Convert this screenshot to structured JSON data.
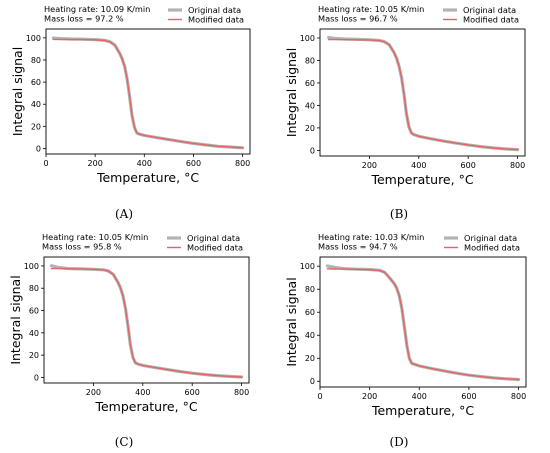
{
  "colors": {
    "original": "#b3b3b3",
    "modified": "#e06666",
    "axis": "#000000"
  },
  "chart_data": [
    {
      "type": "line",
      "panel_label": "(A)",
      "annotation": [
        "Heating rate: 10.09 K/min",
        "Mass loss = 97.2 %"
      ],
      "xlabel": "Temperature, °C",
      "ylabel": "Integral signal",
      "xlim": [
        0,
        830
      ],
      "ylim": [
        -5,
        108
      ],
      "xticks": [
        0,
        200,
        400,
        600,
        800
      ],
      "yticks": [
        0,
        20,
        40,
        60,
        80,
        100
      ],
      "legend": "top-right",
      "series": [
        {
          "name": "Original data",
          "x": [
            30,
            60,
            100,
            150,
            200,
            240,
            260,
            280,
            300,
            310,
            320,
            330,
            340,
            350,
            360,
            370,
            380,
            400,
            450,
            500,
            550,
            600,
            650,
            700,
            750,
            800
          ],
          "y": [
            99.8,
            99.3,
            99.0,
            98.8,
            98.4,
            97.7,
            96.5,
            93.5,
            86.0,
            81.0,
            74.0,
            63.0,
            47.0,
            30.0,
            19.0,
            14.0,
            13.0,
            11.8,
            9.8,
            8.0,
            6.2,
            4.6,
            3.2,
            2.0,
            1.3,
            0.6
          ]
        },
        {
          "name": "Modified data",
          "x": [
            30,
            60,
            100,
            150,
            200,
            240,
            260,
            280,
            300,
            310,
            320,
            330,
            340,
            350,
            360,
            370,
            380,
            400,
            450,
            500,
            550,
            600,
            650,
            700,
            750,
            800
          ],
          "y": [
            98.6,
            98.6,
            98.5,
            98.4,
            98.2,
            97.6,
            96.4,
            93.4,
            86.0,
            81.0,
            74.0,
            63.0,
            47.0,
            30.0,
            19.0,
            14.0,
            13.0,
            11.8,
            9.8,
            8.0,
            6.2,
            4.6,
            3.2,
            2.0,
            1.3,
            0.6
          ]
        }
      ]
    },
    {
      "type": "line",
      "panel_label": "(B)",
      "annotation": [
        "Heating rate: 10.05 K/min",
        "Mass loss = 96.7 %"
      ],
      "xlabel": "Temperature, °C",
      "ylabel": "Integral signal",
      "xlim": [
        0,
        830
      ],
      "ylim": [
        -5,
        108
      ],
      "xticks": [
        200,
        400,
        600,
        800
      ],
      "yticks": [
        0,
        20,
        40,
        60,
        80,
        100
      ],
      "legend": "top-right",
      "series": [
        {
          "name": "Original data",
          "x": [
            35,
            60,
            100,
            150,
            200,
            240,
            260,
            280,
            300,
            310,
            320,
            330,
            340,
            350,
            360,
            370,
            380,
            400,
            450,
            500,
            550,
            600,
            650,
            700,
            750,
            800
          ],
          "y": [
            100.5,
            99.6,
            99.1,
            98.8,
            98.4,
            97.8,
            96.8,
            94.0,
            87.0,
            82.0,
            75.0,
            65.0,
            50.0,
            33.0,
            21.0,
            15.5,
            14.0,
            12.5,
            10.3,
            8.3,
            6.5,
            4.9,
            3.4,
            2.2,
            1.3,
            0.7
          ]
        },
        {
          "name": "Modified data",
          "x": [
            35,
            60,
            100,
            150,
            200,
            240,
            260,
            280,
            300,
            310,
            320,
            330,
            340,
            350,
            360,
            370,
            380,
            400,
            450,
            500,
            550,
            600,
            650,
            700,
            750,
            800
          ],
          "y": [
            98.6,
            98.6,
            98.5,
            98.4,
            98.3,
            97.7,
            96.7,
            94.0,
            87.0,
            82.0,
            75.0,
            65.0,
            50.0,
            33.0,
            21.0,
            15.5,
            14.0,
            12.5,
            10.3,
            8.3,
            6.5,
            4.9,
            3.4,
            2.2,
            1.3,
            0.7
          ]
        }
      ]
    },
    {
      "type": "line",
      "panel_label": "(C)",
      "annotation": [
        "Heating rate: 10.05 K/min",
        "Mass loss = 95.8 %"
      ],
      "xlabel": "Temperature, °C",
      "ylabel": "Integral signal",
      "xlim": [
        0,
        830
      ],
      "ylim": [
        -5,
        108
      ],
      "xticks": [
        200,
        400,
        600,
        800
      ],
      "yticks": [
        0,
        20,
        40,
        60,
        80,
        100
      ],
      "legend": "top-right",
      "series": [
        {
          "name": "Original data",
          "x": [
            30,
            60,
            100,
            150,
            200,
            240,
            260,
            280,
            300,
            310,
            320,
            330,
            340,
            350,
            360,
            370,
            380,
            400,
            450,
            500,
            550,
            600,
            650,
            700,
            750,
            800
          ],
          "y": [
            100.2,
            98.6,
            97.6,
            97.3,
            97.0,
            96.5,
            95.5,
            92.5,
            85.0,
            80.0,
            73.0,
            62.0,
            46.0,
            29.0,
            18.0,
            13.0,
            12.0,
            10.8,
            8.8,
            7.0,
            5.3,
            3.8,
            2.6,
            1.6,
            0.9,
            0.4
          ]
        },
        {
          "name": "Modified data",
          "x": [
            30,
            60,
            100,
            150,
            200,
            240,
            260,
            280,
            300,
            310,
            320,
            330,
            340,
            350,
            360,
            370,
            380,
            400,
            450,
            500,
            550,
            600,
            650,
            700,
            750,
            800
          ],
          "y": [
            97.6,
            97.6,
            97.5,
            97.3,
            97.0,
            96.5,
            95.5,
            92.5,
            85.0,
            80.0,
            73.0,
            62.0,
            46.0,
            29.0,
            18.0,
            13.0,
            12.0,
            10.8,
            8.8,
            7.0,
            5.3,
            3.8,
            2.6,
            1.6,
            0.9,
            0.4
          ]
        }
      ]
    },
    {
      "type": "line",
      "panel_label": "(D)",
      "annotation": [
        "Heating rate: 10.03 K/min",
        "Mass loss = 94.7 %"
      ],
      "xlabel": "Temperature, °C",
      "ylabel": "Integral signal",
      "xlim": [
        0,
        830
      ],
      "ylim": [
        -5,
        108
      ],
      "xticks": [
        0,
        200,
        400,
        600,
        800
      ],
      "yticks": [
        0,
        20,
        40,
        60,
        80,
        100
      ],
      "legend": "top-right",
      "series": [
        {
          "name": "Original data",
          "x": [
            30,
            60,
            100,
            150,
            200,
            240,
            260,
            280,
            300,
            310,
            320,
            330,
            340,
            350,
            360,
            370,
            380,
            400,
            450,
            500,
            550,
            600,
            650,
            700,
            750,
            800
          ],
          "y": [
            100.3,
            99.0,
            97.8,
            97.4,
            97.1,
            96.4,
            94.8,
            90.0,
            84.5,
            80.5,
            74.0,
            63.0,
            47.0,
            31.0,
            20.0,
            15.5,
            14.8,
            13.3,
            11.0,
            9.0,
            7.0,
            5.3,
            4.0,
            2.9,
            2.1,
            1.5
          ]
        },
        {
          "name": "Modified data",
          "x": [
            30,
            60,
            100,
            150,
            200,
            240,
            260,
            280,
            300,
            310,
            320,
            330,
            340,
            350,
            360,
            370,
            380,
            400,
            450,
            500,
            550,
            600,
            650,
            700,
            750,
            800
          ],
          "y": [
            97.7,
            97.6,
            97.5,
            97.3,
            97.0,
            96.3,
            94.7,
            90.0,
            84.5,
            80.5,
            74.0,
            63.0,
            47.0,
            31.0,
            20.0,
            15.5,
            14.8,
            13.3,
            11.0,
            9.0,
            7.0,
            5.3,
            4.0,
            2.9,
            2.1,
            1.5
          ]
        }
      ]
    }
  ]
}
